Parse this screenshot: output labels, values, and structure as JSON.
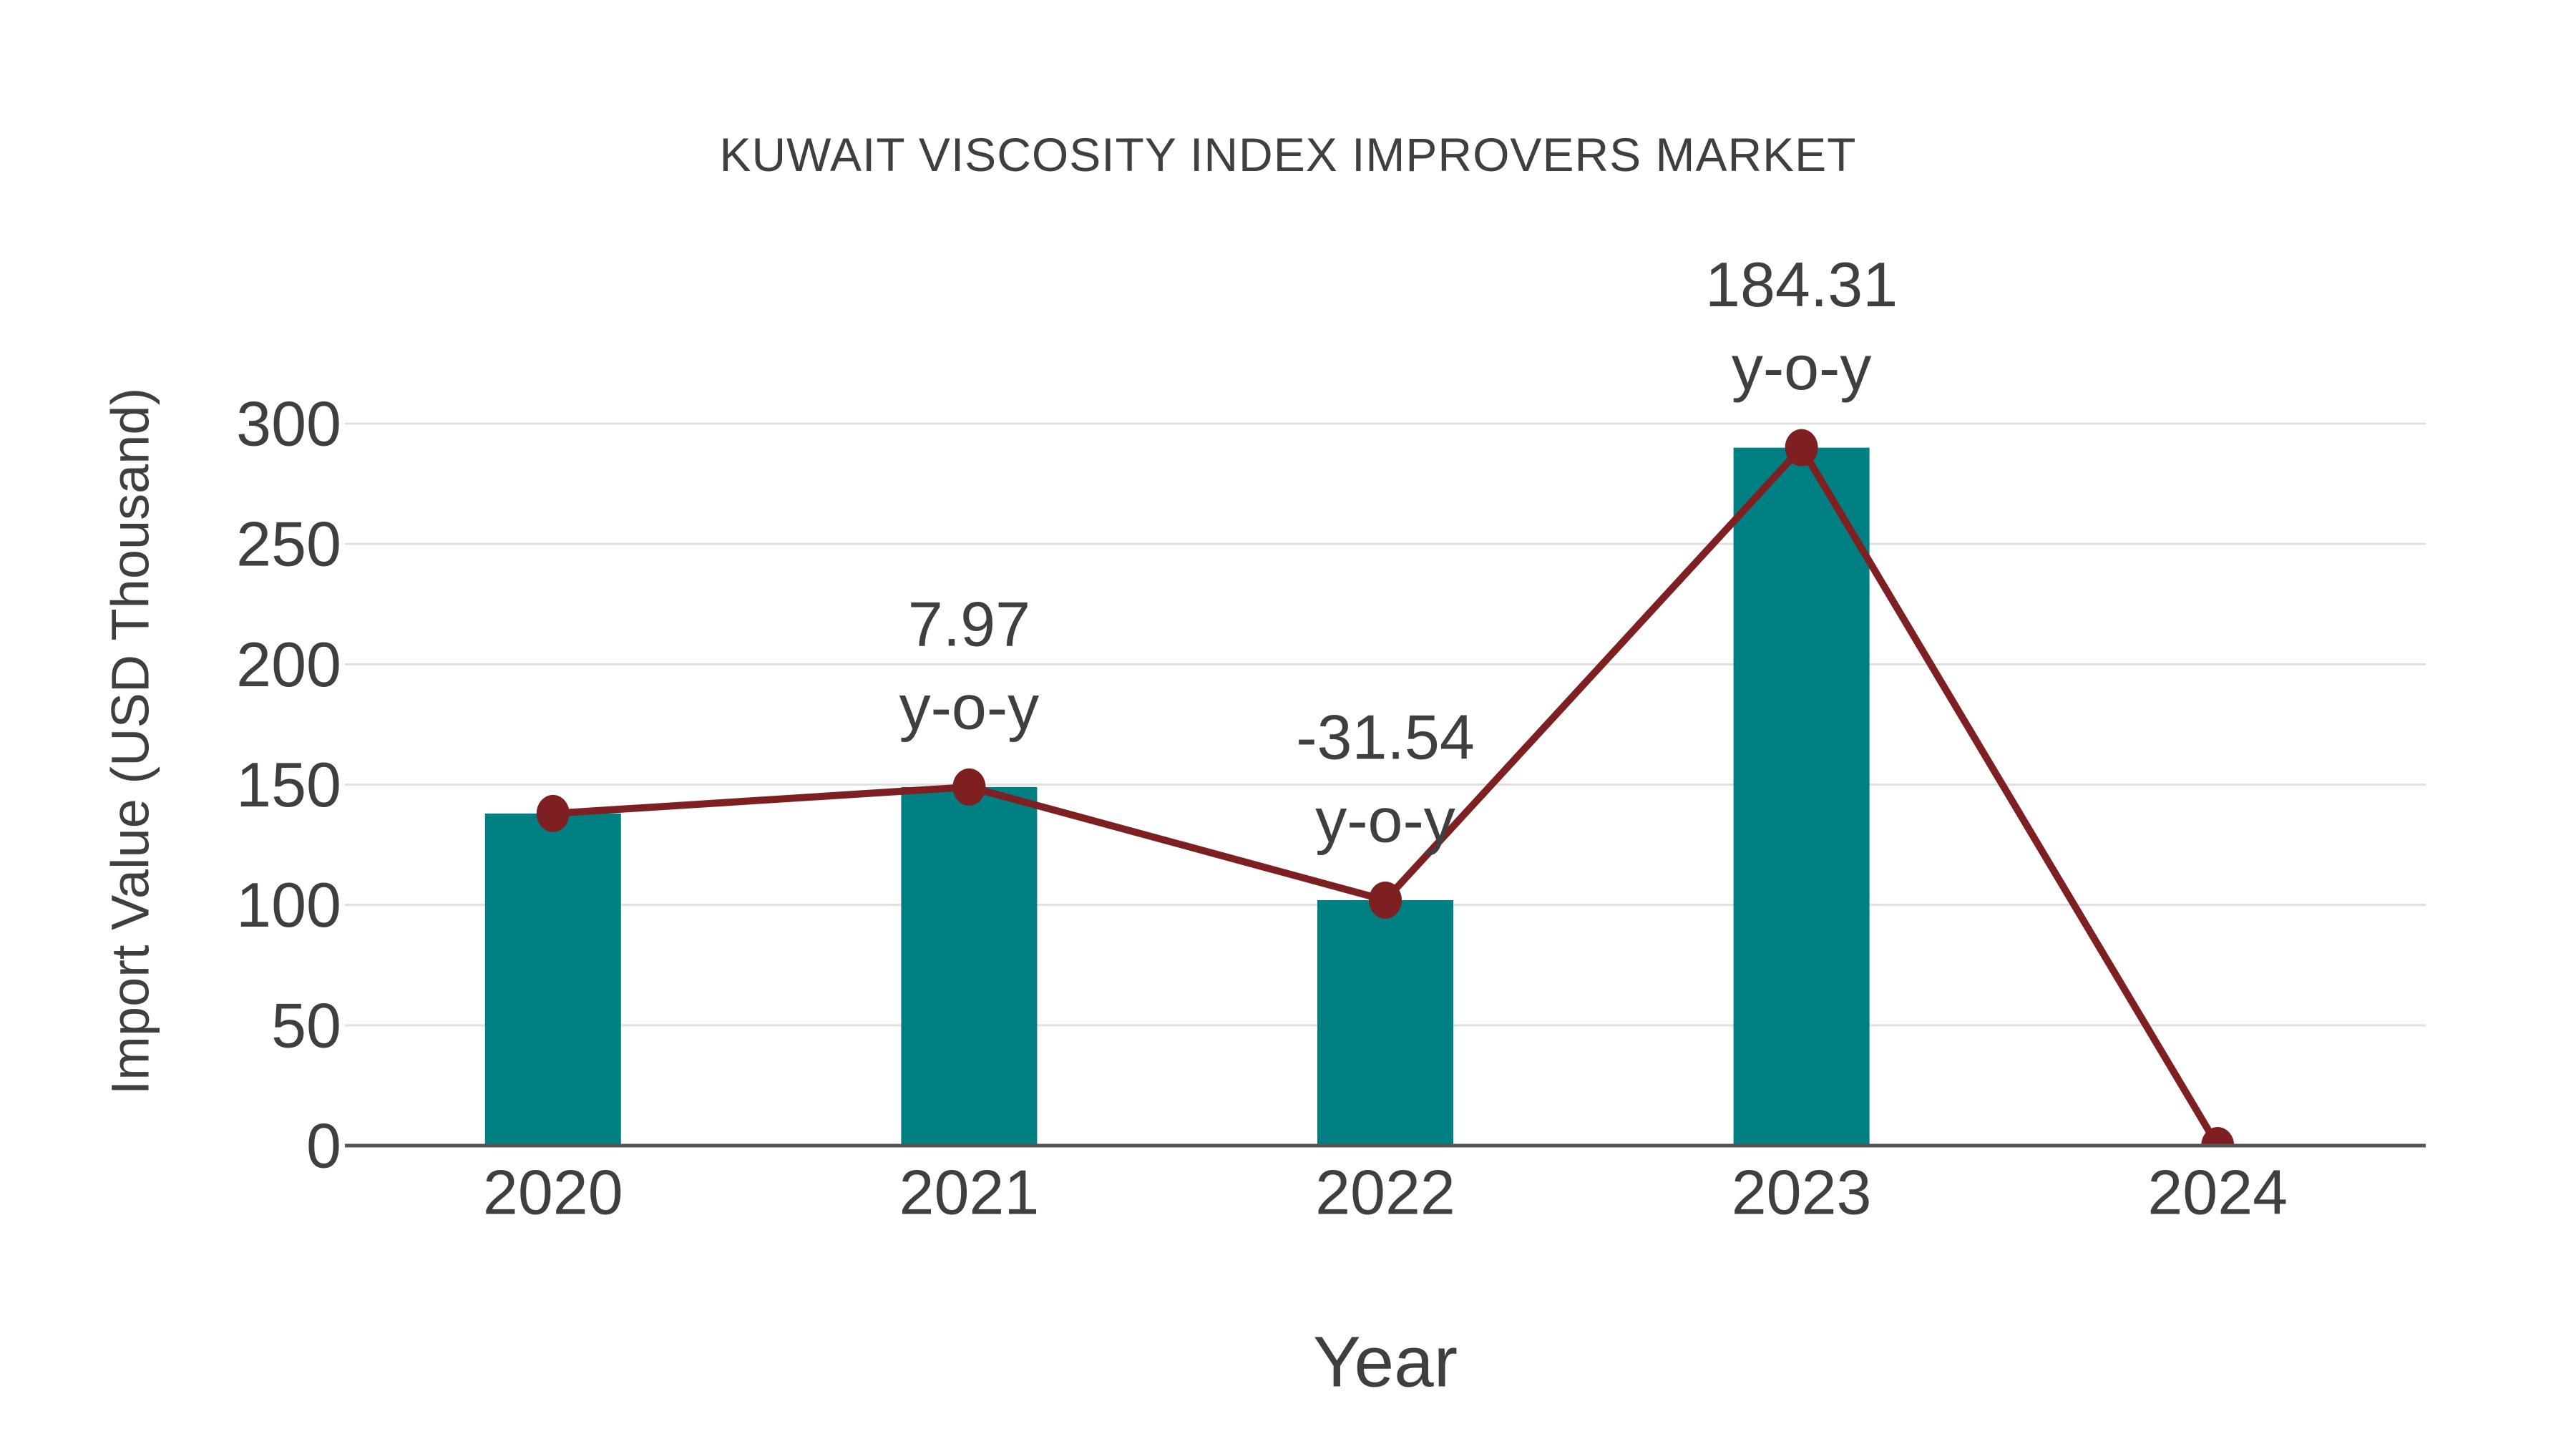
{
  "title": "KUWAIT VISCOSITY INDEX IMPROVERS MARKET",
  "colors": {
    "bar": "#008083",
    "line": "#7E2022",
    "marker": "#7E2022",
    "text": "#3F3F3F",
    "grid": "#E0E0E0",
    "axis": "#555555",
    "background": "#FFFFFF"
  },
  "chart_data": {
    "type": "bar",
    "title": "KUWAIT VISCOSITY INDEX IMPROVERS MARKET",
    "xlabel": "Year",
    "ylabel": "Import Value (USD Thousand)",
    "categories": [
      "2020",
      "2021",
      "2022",
      "2023",
      "2024"
    ],
    "series": [
      {
        "name": "Import Value (USD Thousand)",
        "type": "bar",
        "values": [
          138,
          149,
          102,
          290,
          0
        ]
      },
      {
        "name": "Import Value trend",
        "type": "line",
        "values": [
          138,
          149,
          102,
          290,
          0
        ]
      }
    ],
    "annotations": [
      {
        "category": "2021",
        "value_label": "7.97",
        "unit_label": "y-o-y"
      },
      {
        "category": "2022",
        "value_label": "-31.54",
        "unit_label": "y-o-y"
      },
      {
        "category": "2023",
        "value_label": "184.31",
        "unit_label": "y-o-y"
      }
    ],
    "yticks": [
      0,
      50,
      100,
      150,
      200,
      250,
      300
    ],
    "ylim": [
      0,
      300
    ],
    "grid": "horizontal",
    "legend_position": "none"
  }
}
